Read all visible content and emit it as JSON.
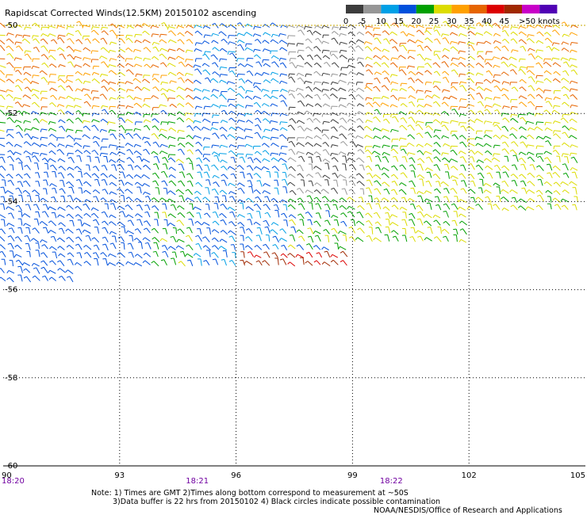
{
  "chart_data": {
    "type": "scatter",
    "title": "Rapidscat Corrected Winds(12.5KM) 20150102 ascending",
    "xlim": [
      90,
      105
    ],
    "ylim": [
      -60,
      -50
    ],
    "x_ticks": [
      "90",
      "93",
      "96",
      "99",
      "102",
      "105"
    ],
    "y_ticks": [
      "-50",
      "-52",
      "-54",
      "-56",
      "-58",
      "-60"
    ],
    "y_ticks_with_gridline": [
      "-52",
      "-54",
      "-56",
      "-58"
    ],
    "time_labels": [
      {
        "lon": 90,
        "text": "18:20"
      },
      {
        "lon": 95,
        "text": "18:21"
      },
      {
        "lon": 100,
        "text": "18:22"
      }
    ],
    "legend": {
      "placement": "top-right",
      "labels": [
        "0",
        "5",
        "10",
        "15",
        "20",
        "25",
        "30",
        "35",
        "40",
        "45",
        ">50 knots"
      ],
      "colors": [
        "#3c3c3c",
        "#969696",
        "#00a0e6",
        "#0050dc",
        "#00a000",
        "#dcdc00",
        "#ffa000",
        "#e66400",
        "#dc0000",
        "#a02800",
        "#c800c8",
        "#5000b4"
      ]
    },
    "series": [
      {
        "values": "wind barbs, speed 0–50+ knots; rendered by script"
      }
    ],
    "notes": [
      "Note: 1) Times are GMT 2)Times along bottom correspond to measurement at ~50S",
      "3)Data buffer is 22 hrs from 20150102 4) Black circles indicate possible contamination"
    ],
    "credit": "NOAA/NESDIS/Office of Research and Applications"
  }
}
